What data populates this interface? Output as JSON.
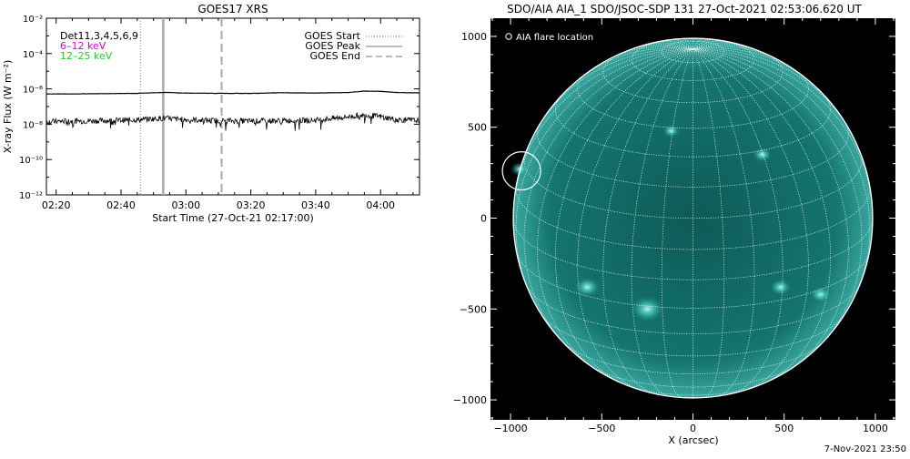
{
  "footer_date": "7-Nov-2021 23:50",
  "chart_data": [
    {
      "type": "line",
      "title": "GOES17 XRS",
      "xlabel": "Start Time (27-Oct-21 02:17:00)",
      "ylabel": "X-ray Flux (W m⁻²)",
      "ylog": true,
      "xlim": [
        "02:17",
        "04:12"
      ],
      "ylim": [
        1e-12,
        0.01
      ],
      "x_ticks": [
        "02:20",
        "02:40",
        "03:00",
        "03:20",
        "03:40",
        "04:00"
      ],
      "y_ticks": [
        "10⁻²",
        "10⁻⁴",
        "10⁻⁶",
        "10⁻⁸",
        "10⁻¹⁰",
        "10⁻¹²"
      ],
      "channels_text": "Det11,3,4,5,6,9",
      "channels": [
        {
          "name": "6–12 keV",
          "color": "#e000e0"
        },
        {
          "name": "12–25 keV",
          "color": "#20d020"
        }
      ],
      "legend": [
        {
          "name": "GOES Start",
          "style": "dotted",
          "time": "02:46"
        },
        {
          "name": "GOES Peak",
          "style": "solid",
          "time": "02:53"
        },
        {
          "name": "GOES End",
          "style": "dashed",
          "time": "03:11"
        }
      ],
      "legend_position": "top-right",
      "series": [
        {
          "name": "",
          "x": [
            "02:17",
            "02:25",
            "02:35",
            "02:45",
            "02:53",
            "03:00",
            "03:10",
            "03:20",
            "03:30",
            "03:40",
            "03:50",
            "03:55",
            "04:00",
            "04:05",
            "04:12"
          ],
          "values": [
            5.2e-07,
            5.2e-07,
            5.4e-07,
            5.6e-07,
            6.3e-07,
            5.8e-07,
            5.6e-07,
            5.6e-07,
            6.1e-07,
            5.8e-07,
            6.2e-07,
            7.5e-07,
            7.3e-07,
            6.2e-07,
            6e-07
          ]
        },
        {
          "name": "",
          "x": [
            "02:17",
            "02:25",
            "02:35",
            "02:45",
            "02:53",
            "03:00",
            "03:10",
            "03:20",
            "03:30",
            "03:40",
            "03:50",
            "03:55",
            "04:00",
            "04:05",
            "04:12"
          ],
          "values": [
            1.4e-08,
            1.5e-08,
            1.6e-08,
            1.8e-08,
            2.2e-08,
            1.8e-08,
            1.6e-08,
            1.5e-08,
            1.6e-08,
            1.7e-08,
            2.6e-08,
            3.4e-08,
            2.7e-08,
            1.8e-08,
            1.6e-08
          ]
        }
      ]
    },
    {
      "type": "scatter",
      "title": "SDO/AIA AIA_1 SDO/JSOC-SDP 131 27-Oct-2021 02:53:06.620 UT",
      "xlabel": "X (arcsec)",
      "ylabel": "",
      "xlim": [
        -1110,
        1110
      ],
      "ylim": [
        -1110,
        1100
      ],
      "x_ticks": [
        -1000,
        -500,
        0,
        500,
        1000
      ],
      "y_ticks": [
        1000,
        500,
        0,
        -500,
        -1000
      ],
      "solar_radius_arcsec": 985,
      "legend_label": "AIA flare location",
      "disk_color": "#0e5a57",
      "limb_color": "#3aa8a0",
      "points": [
        {
          "name": "AIA flare location",
          "x": -940,
          "y": 260
        }
      ],
      "bright_regions": [
        {
          "x": -950,
          "y": 270,
          "r": 40
        },
        {
          "x": -580,
          "y": -380,
          "r": 60
        },
        {
          "x": -250,
          "y": -500,
          "r": 80
        },
        {
          "x": 480,
          "y": -380,
          "r": 50
        },
        {
          "x": 700,
          "y": -420,
          "r": 50
        },
        {
          "x": -120,
          "y": 480,
          "r": 40
        },
        {
          "x": 380,
          "y": 350,
          "r": 45
        }
      ]
    }
  ]
}
